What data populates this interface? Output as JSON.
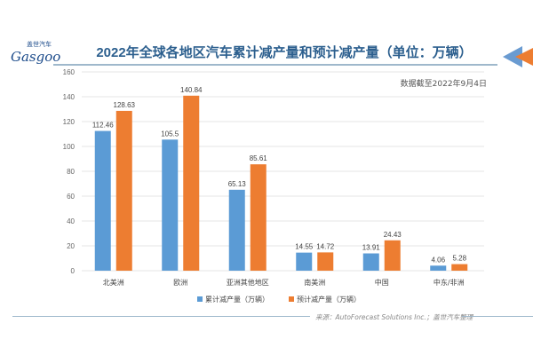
{
  "logo": {
    "cn": "盖世汽车",
    "en": "Gasgoo"
  },
  "title": "2022年全球各地区汽车累计减产量和预计减产量（单位：万辆）",
  "date_note": "数据截至2022年9月4日",
  "source": "来源：AutoForecast Solutions Inc.；盖世汽车整理",
  "colors": {
    "series1": "#5b9bd5",
    "series2": "#ed7d31",
    "title": "#2c5f8e"
  },
  "chart_data": {
    "type": "bar",
    "categories": [
      "北美洲",
      "欧洲",
      "亚洲其他地区",
      "南美洲",
      "中国",
      "中东/非洲"
    ],
    "series": [
      {
        "name": "累计减产量（万辆）",
        "values": [
          112.46,
          105.5,
          65.13,
          14.55,
          13.91,
          4.06
        ],
        "labels": [
          "112.46",
          "105.5",
          "65.13",
          "14.55",
          "13.91",
          "4.06"
        ]
      },
      {
        "name": "预计减产量（万辆）",
        "values": [
          128.63,
          140.84,
          85.61,
          14.72,
          24.43,
          5.28
        ],
        "labels": [
          "128.63",
          "140.84",
          "85.61",
          "14.72",
          "24.43",
          "5.28"
        ]
      }
    ],
    "ylim": [
      0,
      160
    ],
    "yticks": [
      "0",
      "20",
      "40",
      "60",
      "80",
      "100",
      "120",
      "140",
      "160"
    ],
    "grid": true,
    "legend": "bottom"
  }
}
